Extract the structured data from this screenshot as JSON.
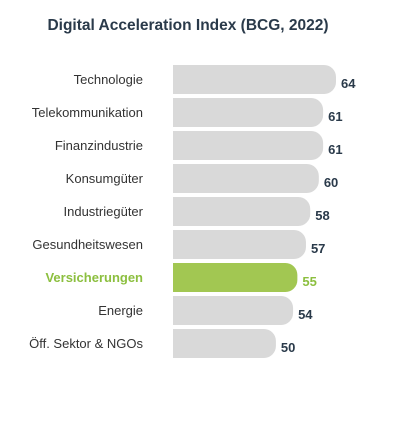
{
  "chart_data": {
    "type": "bar",
    "orientation": "horizontal",
    "title": "Digital Acceleration Index (BCG, 2022)",
    "categories": [
      "Technologie",
      "Telekommunikation",
      "Finanzindustrie",
      "Konsumgüter",
      "Industriegüter",
      "Gesundheitswesen",
      "Versicherungen",
      "Energie",
      "Öff. Sektor & NGOs"
    ],
    "values": [
      64,
      61,
      61,
      60,
      58,
      57,
      55,
      54,
      50
    ],
    "highlight_category": "Versicherungen",
    "colors": {
      "bar": "#d9d9d9",
      "highlight": "#a2c752",
      "label": "#2a3a4a",
      "highlight_text": "#8cbf3f"
    }
  }
}
